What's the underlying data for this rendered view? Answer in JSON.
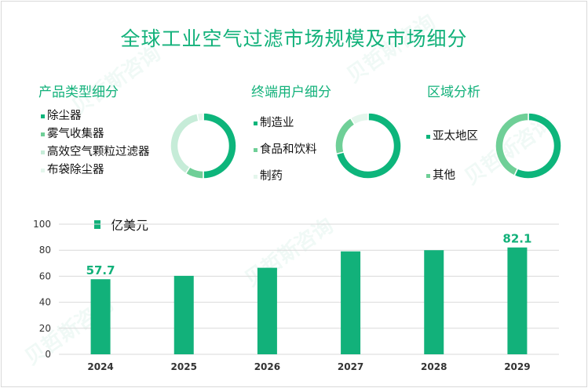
{
  "title": "全球工业空气过滤市场规模及市场细分",
  "segments": [
    {
      "title": "产品类型细分",
      "legend": [
        {
          "label": "除尘器",
          "color": "#0db57b"
        },
        {
          "label": "雾气收集器",
          "color": "#6fcf97"
        },
        {
          "label": "高效空气颗粒过滤器",
          "color": "#c6ecd8"
        },
        {
          "label": "布袋除尘器",
          "color": "#e4f6ec"
        }
      ],
      "chart_data": {
        "type": "pie",
        "labels": [
          "除尘器",
          "雾气收集器",
          "高效空气颗粒过滤器",
          "布袋除尘器"
        ],
        "values": [
          50,
          9,
          38,
          3
        ]
      }
    },
    {
      "title": "终端用户细分",
      "legend": [
        {
          "label": "制造业",
          "color": "#0db57b"
        },
        {
          "label": "食品和饮料",
          "color": "#6fcf97"
        },
        {
          "label": "制药",
          "color": "#e4f6ec"
        }
      ],
      "chart_data": {
        "type": "pie",
        "labels": [
          "制造业",
          "食品和饮料",
          "制药"
        ],
        "values": [
          71,
          20,
          9
        ]
      }
    },
    {
      "title": "区域分析",
      "legend": [
        {
          "label": "亚太地区",
          "color": "#0db57b"
        },
        {
          "label": "其他",
          "color": "#6fcf97"
        }
      ],
      "chart_data": {
        "type": "pie",
        "labels": [
          "亚太地区",
          "其他"
        ],
        "values": [
          57,
          43
        ]
      }
    }
  ],
  "bar_legend": {
    "label": "亿美元",
    "color": "#12b17a"
  },
  "chart_data": {
    "type": "bar",
    "categories": [
      "2024",
      "2025",
      "2026",
      "2027",
      "2028",
      "2029"
    ],
    "values": [
      57.7,
      60.3,
      66.5,
      79.1,
      80.0,
      82.1
    ],
    "data_labels": [
      "57.7",
      "",
      "",
      "",
      "",
      "82.1"
    ],
    "ylim": [
      0,
      100
    ],
    "yticks": [
      0,
      20,
      40,
      60,
      80,
      100
    ],
    "ytick_labels": [
      "0",
      "20",
      "40",
      "60",
      "80",
      "100"
    ],
    "grid": true,
    "bar_color": "#12b17a"
  }
}
